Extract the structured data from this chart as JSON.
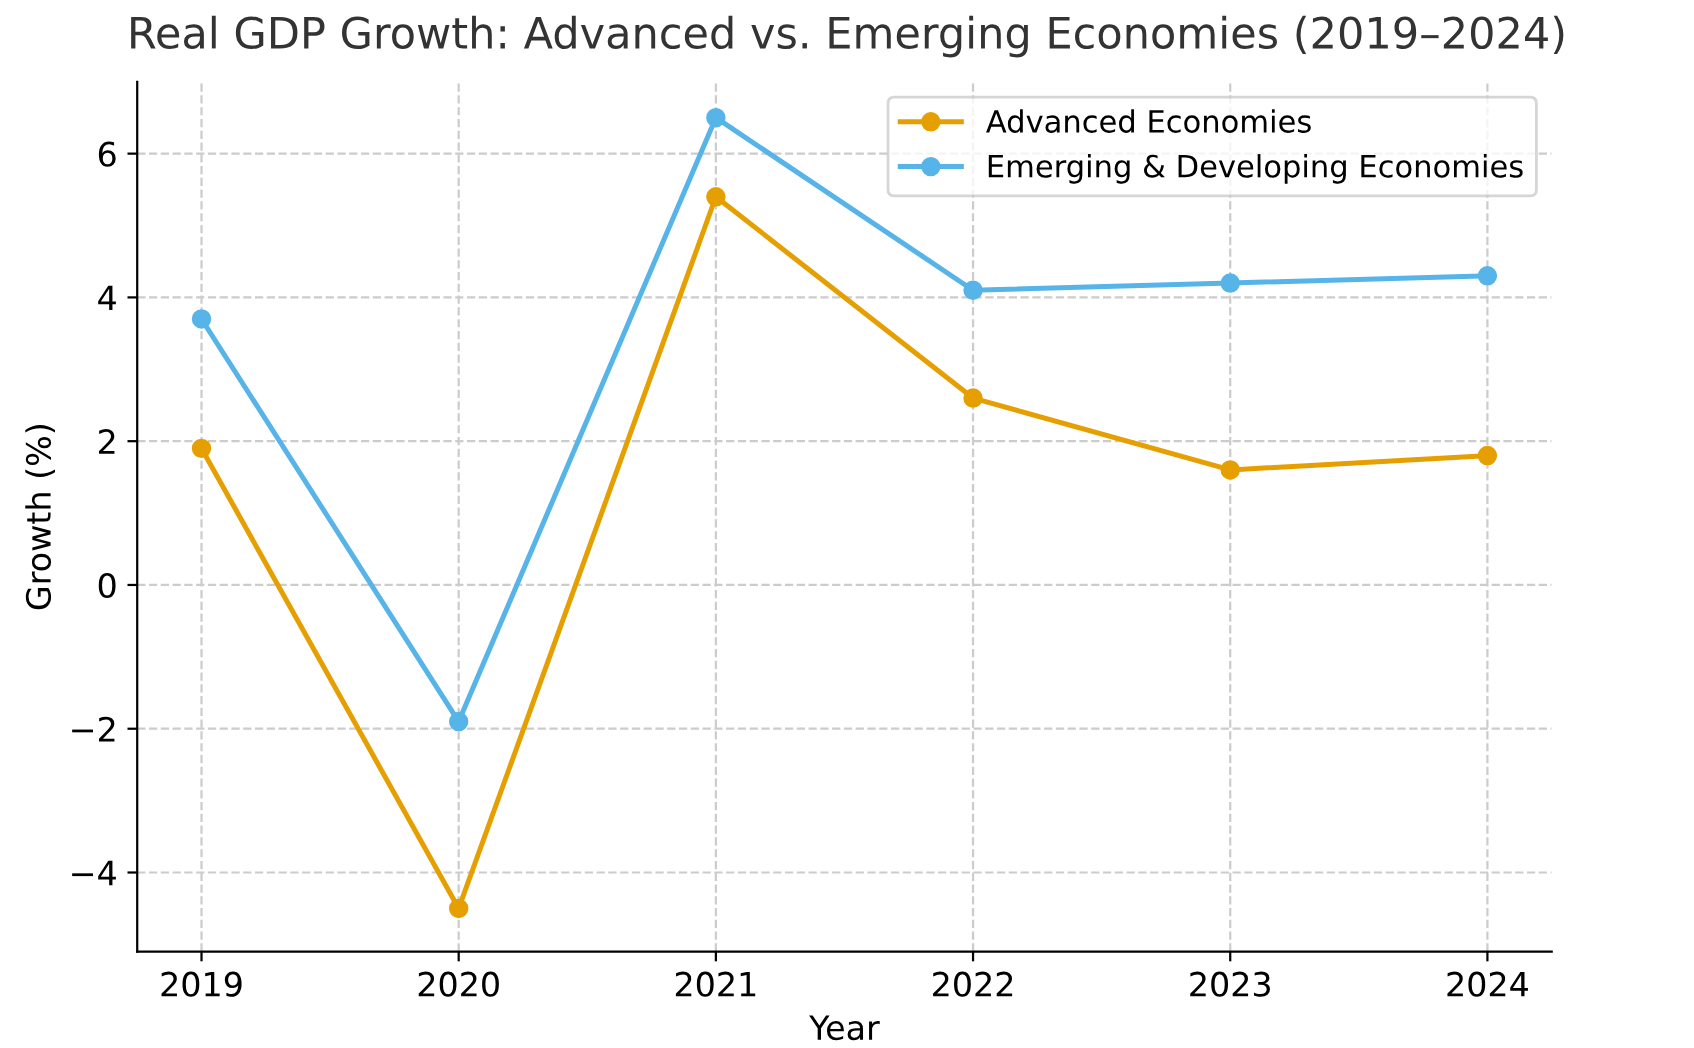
{
  "chart_data": {
    "type": "line",
    "title": "Real GDP Growth: Advanced vs. Emerging Economies (2019–2024)",
    "xlabel": "Year",
    "ylabel": "Growth (%)",
    "x": [
      2019,
      2020,
      2021,
      2022,
      2023,
      2024
    ],
    "series": [
      {
        "name": "Advanced Economies",
        "color": "#e69f00",
        "values": [
          1.9,
          -4.5,
          5.4,
          2.6,
          1.6,
          1.8
        ]
      },
      {
        "name": "Emerging & Developing Economies",
        "color": "#56b4e9",
        "values": [
          3.7,
          -1.9,
          6.5,
          4.1,
          4.2,
          4.3
        ]
      }
    ],
    "xlim": [
      2018.75,
      2024.25
    ],
    "xticks": [
      2019,
      2020,
      2021,
      2022,
      2023,
      2024
    ],
    "ylim": [
      -5.1,
      7.0
    ],
    "yticks": [
      {
        "value": -4,
        "label": "−4"
      },
      {
        "value": -2,
        "label": "−2"
      },
      0,
      2,
      4,
      6
    ],
    "grid": true,
    "legend": "top right",
    "marker": "circle",
    "line_style": "solid"
  }
}
